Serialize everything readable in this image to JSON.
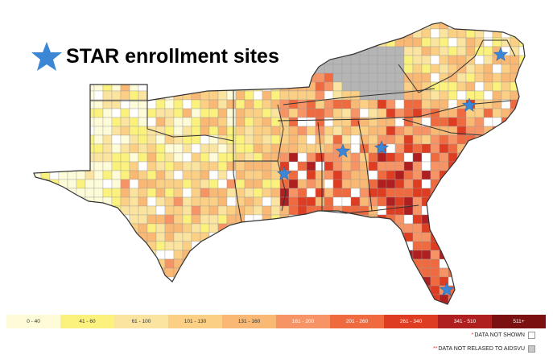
{
  "title": "STAR enrollment sites",
  "legend": {
    "bins": [
      {
        "label": "0 - 40",
        "color": "#fefbd8",
        "text": "dark"
      },
      {
        "label": "41 - 60",
        "color": "#fbf27e",
        "text": "dark"
      },
      {
        "label": "61 - 100",
        "color": "#fae49f",
        "text": "dark"
      },
      {
        "label": "101 - 130",
        "color": "#fbd084",
        "text": "dark"
      },
      {
        "label": "131 - 160",
        "color": "#f9b873",
        "text": "dark"
      },
      {
        "label": "161 - 200",
        "color": "#f79465",
        "text": "light"
      },
      {
        "label": "201 - 260",
        "color": "#f06a3f",
        "text": "light"
      },
      {
        "label": "261 - 340",
        "color": "#df3d21",
        "text": "light"
      },
      {
        "label": "341 - 510",
        "color": "#b01f1f",
        "text": "light"
      },
      {
        "label": "511+",
        "color": "#7a1010",
        "text": "light"
      }
    ],
    "note_not_shown": {
      "marker": "*",
      "text": "DATA NOT SHOWN",
      "color": "#ffffff"
    },
    "note_not_released": {
      "marker": "**",
      "text": "DATA NOT RELASED TO AIDSVU",
      "color": "#c8c8c8"
    }
  },
  "colors": {
    "star": "#3b87d6",
    "nodata": "#ffffff",
    "notreleased": "#b5b5b5",
    "county_stroke": "#9a9a9a",
    "state_stroke": "#333333"
  },
  "icons": {
    "title_marker": "star-icon",
    "site_marker": "star-icon"
  }
}
